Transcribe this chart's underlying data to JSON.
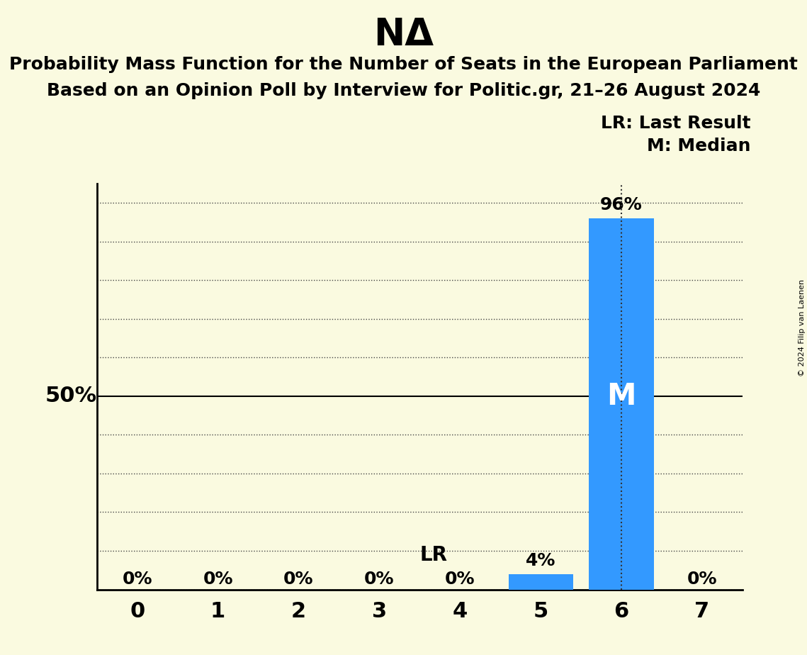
{
  "title": "NΔ",
  "subtitle1": "Probability Mass Function for the Number of Seats in the European Parliament",
  "subtitle2": "Based on an Opinion Poll by Interview for Politic.gr, 21–26 August 2024",
  "copyright": "© 2024 Filip van Laenen",
  "seats": [
    0,
    1,
    2,
    3,
    4,
    5,
    6,
    7
  ],
  "probabilities": [
    0.0,
    0.0,
    0.0,
    0.0,
    0.0,
    0.04,
    0.96,
    0.0
  ],
  "bar_color": "#3399FF",
  "last_result_seat": 6,
  "median_seat": 6,
  "background_color": "#FAFAE0",
  "bar_labels": [
    "0%",
    "0%",
    "0%",
    "0%",
    "0%",
    "4%",
    "96%",
    "0%"
  ],
  "ylim": [
    0,
    1.05
  ],
  "ylabel_50": "50%",
  "legend_lr": "LR: Last Result",
  "legend_m": "M: Median",
  "lr_label": "LR",
  "grid_color": "#444444",
  "fifty_line_color": "#000000",
  "lr_line_color": "#333333",
  "title_fontsize": 38,
  "subtitle_fontsize": 18,
  "tick_fontsize": 22,
  "label_fontsize": 18,
  "legend_fontsize": 18,
  "fifty_fontsize": 22,
  "M_fontsize": 30,
  "lr_fontsize": 20
}
